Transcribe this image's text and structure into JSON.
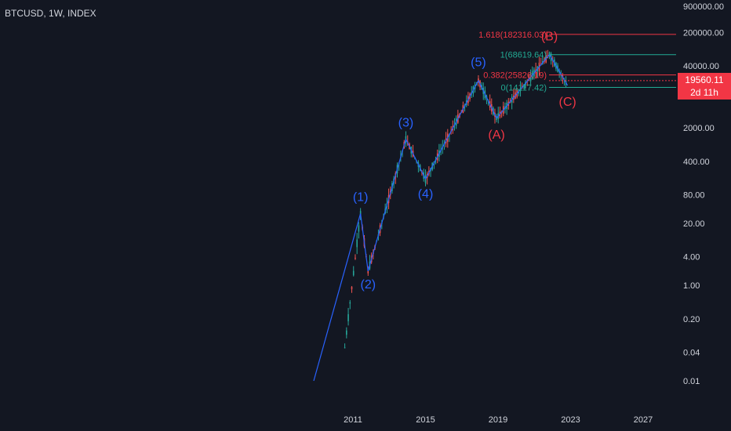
{
  "header": {
    "symbol": "BTCUSD, 1W, INDEX"
  },
  "price_tag": {
    "price": "19560.11",
    "countdown": "2d 11h"
  },
  "colors": {
    "background": "#131722",
    "wave_blue": "#2962ff",
    "wave_red": "#f23645",
    "fib_green": "#22ab94",
    "candle_up": "#26a69a",
    "candle_down": "#ef5350",
    "axis_text": "#d1d4dc"
  },
  "chart_data": {
    "type": "line",
    "y_scale": "log",
    "y_ticks": [
      "900000.00",
      "200000.00",
      "40000.00",
      "2000.00",
      "400.00",
      "80.00",
      "20.00",
      "4.00",
      "1.00",
      "0.20",
      "0.04",
      "0.01"
    ],
    "x_ticks": [
      "2011",
      "2015",
      "2019",
      "2023",
      "2027"
    ],
    "elliott_waves": [
      {
        "label": "(1)",
        "date": "2011-06",
        "price": 32
      },
      {
        "label": "(2)",
        "date": "2011-11",
        "price": 2
      },
      {
        "label": "(3)",
        "date": "2013-12",
        "price": 1160
      },
      {
        "label": "(4)",
        "date": "2015-01",
        "price": 170
      },
      {
        "label": "(5)",
        "date": "2017-12",
        "price": 19700
      },
      {
        "label": "(A)",
        "date": "2018-12",
        "price": 3200
      },
      {
        "label": "(B)",
        "date": "2021-11",
        "price": 69000
      },
      {
        "label": "(C)",
        "date": "2022-11",
        "price": 15500
      }
    ],
    "fib_levels": [
      {
        "label": "1.618(182316.03)",
        "ratio": 1.618,
        "price": 182316.03,
        "color": "red"
      },
      {
        "label": "1(68619.64)",
        "ratio": 1,
        "price": 68619.64,
        "color": "green"
      },
      {
        "label": "0.382(25826.19)",
        "ratio": 0.382,
        "price": 25826.19,
        "color": "red"
      },
      {
        "label": "0(14117.42)",
        "ratio": 0,
        "price": 14117.42,
        "color": "green"
      }
    ],
    "last_price": 19560.11
  }
}
